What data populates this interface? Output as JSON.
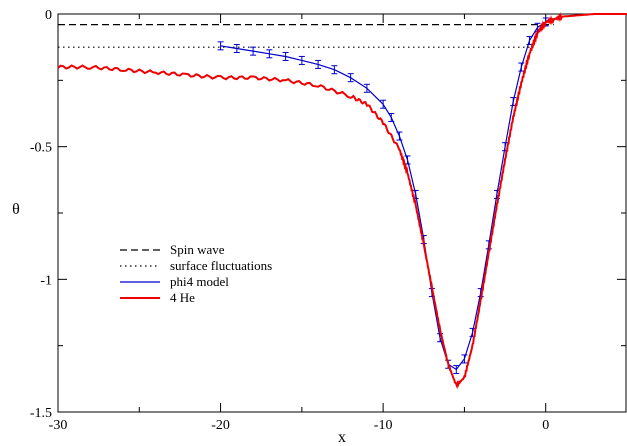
{
  "chart_data": {
    "type": "line",
    "xlabel": "x",
    "ylabel": "θ",
    "xlim": [
      -30,
      5
    ],
    "ylim": [
      -1.5,
      0
    ],
    "x_ticks": [
      {
        "value": -30,
        "label": "-30"
      },
      {
        "value": -20,
        "label": "-20"
      },
      {
        "value": -10,
        "label": "-10"
      },
      {
        "value": 0,
        "label": "0"
      }
    ],
    "y_ticks": [
      {
        "value": 0,
        "label": "0"
      },
      {
        "value": -0.5,
        "label": "-0.5"
      },
      {
        "value": -1,
        "label": "-1"
      },
      {
        "value": -1.5,
        "label": "-1.5"
      }
    ],
    "grid": false,
    "legend_placement": "lower-left",
    "series": [
      {
        "name": "Spin wave",
        "style": "dashed",
        "color": "#000000",
        "x": [
          -30,
          0.5
        ],
        "y": [
          -0.04,
          -0.04
        ]
      },
      {
        "name": "surface fluctuations",
        "style": "dotted",
        "color": "#000000",
        "x": [
          -30,
          -0.8
        ],
        "y": [
          -0.125,
          -0.125
        ]
      },
      {
        "name": "phi4 model",
        "style": "solid-errorbars",
        "color": "#0000cc",
        "x": [
          -20,
          -19,
          -18,
          -17,
          -16,
          -15,
          -14,
          -13,
          -12,
          -11,
          -10,
          -9.5,
          -9,
          -8.5,
          -8,
          -7.5,
          -7,
          -6.5,
          -6,
          -5.5,
          -5,
          -4.5,
          -4,
          -3.5,
          -3,
          -2.5,
          -2,
          -1.5,
          -1,
          -0.5,
          0
        ],
        "y": [
          -0.12,
          -0.13,
          -0.14,
          -0.15,
          -0.16,
          -0.175,
          -0.19,
          -0.21,
          -0.24,
          -0.28,
          -0.34,
          -0.39,
          -0.46,
          -0.55,
          -0.68,
          -0.85,
          -1.05,
          -1.22,
          -1.32,
          -1.34,
          -1.3,
          -1.2,
          -1.05,
          -0.87,
          -0.68,
          -0.5,
          -0.33,
          -0.2,
          -0.1,
          -0.05,
          -0.03
        ]
      },
      {
        "name": "4 He",
        "style": "solid-noisy",
        "color": "#ee0000",
        "x": [
          -30,
          -28,
          -26,
          -24,
          -22,
          -20,
          -18,
          -16,
          -14,
          -12,
          -11,
          -10,
          -9,
          -8.5,
          -8,
          -7.5,
          -7,
          -6.5,
          -6,
          -5.5,
          -5,
          -4.5,
          -4,
          -3.5,
          -3,
          -2.5,
          -2,
          -1.5,
          -1,
          -0.5,
          0,
          0.5,
          1,
          2,
          3,
          4,
          5
        ],
        "y": [
          -0.2,
          -0.2,
          -0.21,
          -0.22,
          -0.23,
          -0.24,
          -0.24,
          -0.25,
          -0.27,
          -0.31,
          -0.34,
          -0.41,
          -0.51,
          -0.6,
          -0.72,
          -0.87,
          -1.03,
          -1.19,
          -1.32,
          -1.4,
          -1.37,
          -1.25,
          -1.08,
          -0.9,
          -0.72,
          -0.55,
          -0.39,
          -0.26,
          -0.15,
          -0.07,
          -0.03,
          -0.02,
          -0.01,
          -0.005,
          0,
          0,
          0
        ]
      }
    ]
  }
}
